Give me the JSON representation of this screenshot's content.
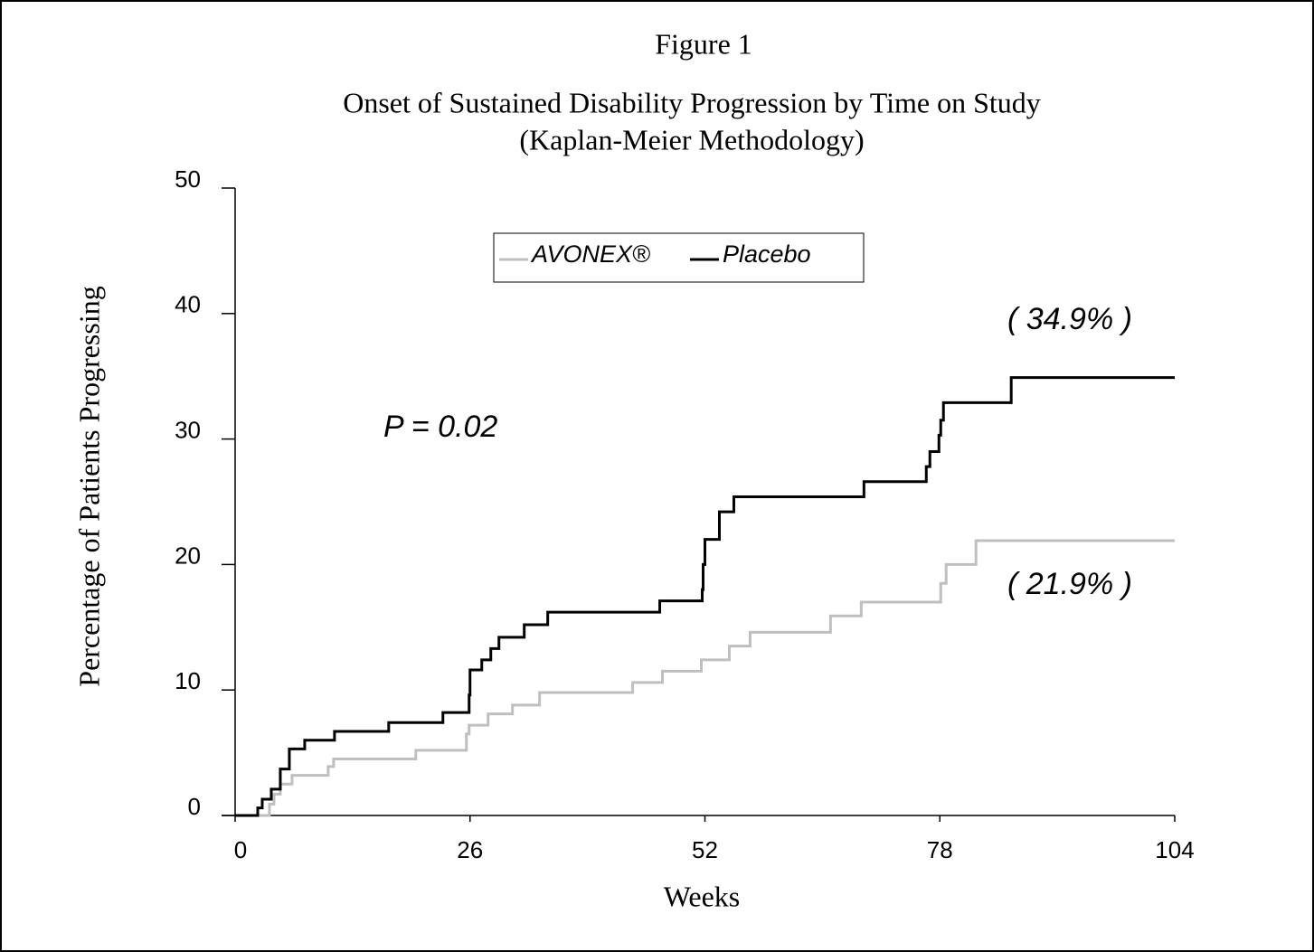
{
  "chart_data": {
    "type": "line",
    "drawstyle": "steps-post",
    "title": "Figure 1",
    "subtitle": [
      "Onset of Sustained Disability Progression by Time on Study",
      "(Kaplan-Meier Methodology)"
    ],
    "xlabel": "Weeks",
    "ylabel": "Percentage of Patients Progressing",
    "xlim": [
      0,
      104
    ],
    "xticks": [
      0,
      26,
      52,
      78,
      104
    ],
    "ylim": [
      0,
      50
    ],
    "yticks": [
      0,
      10,
      20,
      30,
      40,
      50
    ],
    "grid": false,
    "legend": "top",
    "annotations": [
      "P = 0.02",
      "( 34.9% )",
      "( 21.9% )"
    ],
    "series": [
      {
        "name": "AVONEX®",
        "color": "#bfbfbf",
        "x": [
          0,
          3.8,
          4.3,
          5,
          6.3,
          10.3,
          10.9,
          20,
          25.6,
          25.9,
          28,
          30.7,
          33.7,
          44,
          47.3,
          51.6,
          54.7,
          57,
          65.9,
          69.3,
          78.1,
          78.7,
          82,
          104
        ],
        "values": [
          0,
          0.9,
          1.7,
          2.5,
          3.2,
          3.9,
          4.5,
          5.2,
          6.5,
          7.2,
          8.1,
          8.8,
          9.8,
          10.6,
          11.5,
          12.4,
          13.5,
          14.6,
          15.9,
          17.0,
          18.5,
          20.0,
          21.9,
          21.9
        ]
      },
      {
        "name": "Placebo",
        "color": "#000000",
        "x": [
          0,
          2.5,
          3,
          4,
          5,
          6,
          7.7,
          11,
          17,
          23,
          25.9,
          26,
          27.3,
          28.3,
          29.2,
          32,
          34.6,
          47,
          51.7,
          51.8,
          52,
          53.6,
          55.2,
          69.6,
          76.5,
          76.9,
          77.9,
          78.1,
          78.4,
          85.9,
          104
        ],
        "values": [
          0,
          0.6,
          1.3,
          2.1,
          3.7,
          5.3,
          6.0,
          6.7,
          7.4,
          8.2,
          9.6,
          11.6,
          12.4,
          13.3,
          14.2,
          15.2,
          16.2,
          17.1,
          18.0,
          20.0,
          22.0,
          24.2,
          25.4,
          26.6,
          27.8,
          29.0,
          30.3,
          31.5,
          32.9,
          34.9,
          34.9
        ]
      }
    ]
  }
}
